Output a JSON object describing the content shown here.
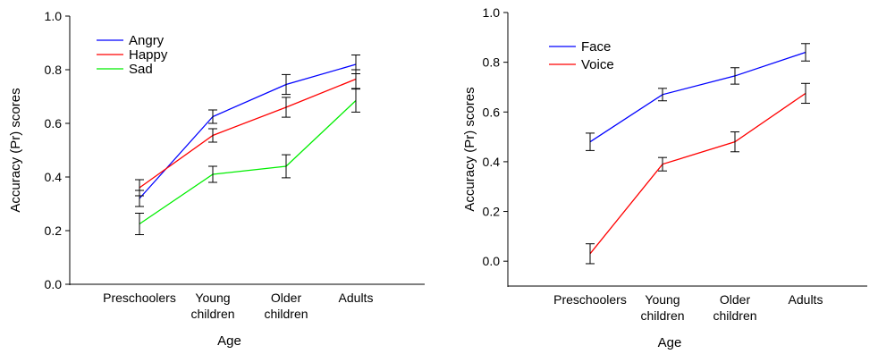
{
  "chart_data": [
    {
      "type": "line",
      "categories": [
        "Preschoolers",
        "Young children",
        "Older children",
        "Adults"
      ],
      "category_lines": [
        [
          "Preschoolers"
        ],
        [
          "Young",
          "children"
        ],
        [
          "Older",
          "children"
        ],
        [
          "Adults"
        ]
      ],
      "xlabel": "Age",
      "ylabel": "Accuracy (Pr) scores",
      "ylim": [
        0.0,
        1.0
      ],
      "yticks": [
        "0.0",
        "0.2",
        "0.4",
        "0.6",
        "0.8",
        "1.0"
      ],
      "legend_position": "top-left",
      "grid": false,
      "error_bars": true,
      "series": [
        {
          "name": "Angry",
          "color": "#0000ff",
          "values": [
            0.32,
            0.625,
            0.745,
            0.82
          ],
          "error": [
            0.03,
            0.025,
            0.037,
            0.035
          ]
        },
        {
          "name": "Happy",
          "color": "#ff0000",
          "values": [
            0.36,
            0.555,
            0.66,
            0.765
          ],
          "error": [
            0.03,
            0.025,
            0.037,
            0.035
          ]
        },
        {
          "name": "Sad",
          "color": "#00ee00",
          "values": [
            0.225,
            0.41,
            0.44,
            0.685
          ],
          "error": [
            0.04,
            0.03,
            0.043,
            0.043
          ]
        }
      ]
    },
    {
      "type": "line",
      "categories": [
        "Preschoolers",
        "Young children",
        "Older children",
        "Adults"
      ],
      "category_lines": [
        [
          "Preschoolers"
        ],
        [
          "Young",
          "children"
        ],
        [
          "Older",
          "children"
        ],
        [
          "Adults"
        ]
      ],
      "xlabel": "Age",
      "ylabel": "Accuracy (Pr) scores",
      "ylim": [
        -0.1,
        1.0
      ],
      "yticks": [
        "0.0",
        "0.2",
        "0.4",
        "0.6",
        "0.8",
        "1.0"
      ],
      "legend_position": "top-left",
      "grid": false,
      "error_bars": true,
      "series": [
        {
          "name": "Face",
          "color": "#0000ff",
          "values": [
            0.48,
            0.67,
            0.745,
            0.84
          ],
          "error": [
            0.035,
            0.025,
            0.033,
            0.035
          ]
        },
        {
          "name": "Voice",
          "color": "#ff0000",
          "values": [
            0.03,
            0.39,
            0.48,
            0.675
          ],
          "error": [
            0.04,
            0.027,
            0.04,
            0.04
          ]
        }
      ]
    }
  ]
}
